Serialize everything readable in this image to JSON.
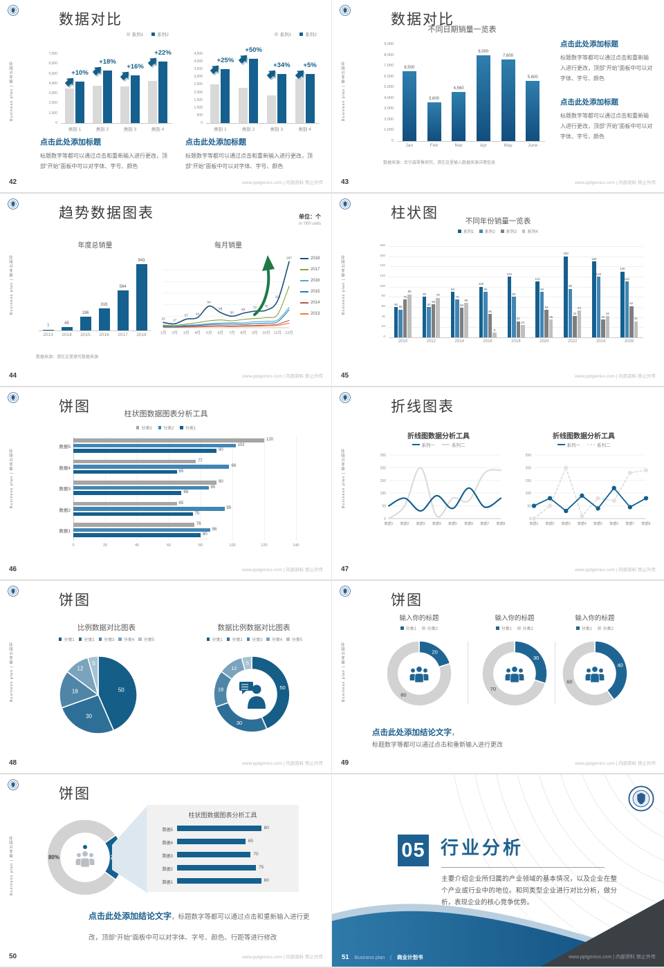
{
  "footer_right": "www.pptgenius.com | 内部资料 禁止外传",
  "sidebar_text": "Business plan | 商业计划书",
  "colors": {
    "accent_blue": "#15608f",
    "mid_blue": "#4186b4",
    "bar_gray": "#d9d9d9",
    "series_gray_dark": "#7f7f7f",
    "series_gray_light": "#bfbfbf",
    "hbar_gray": "#a6a6a6",
    "heading_blue": "#1c5f8d",
    "pie_blues": [
      "#155e87",
      "#2e6f97",
      "#4f86a8",
      "#7aa3bd",
      "#a7c3d4"
    ],
    "donut_blue": "#1f6593",
    "donut_gray": "#d2d2d2",
    "green_arrow": "#1d7a46",
    "divider_dark": "#3b4045",
    "wave_blue_1": "#2f7aa9",
    "wave_blue_2": "#0e4c7c"
  },
  "slides": [
    {
      "page": "42",
      "title": "数据对比",
      "chart_data": [
        {
          "type": "bar",
          "variant": "grouped",
          "categories": [
            "类别 1",
            "类别 2",
            "类别 3",
            "类别 4"
          ],
          "series": [
            {
              "name": "系列1",
              "values": [
                3500,
                3800,
                3700,
                4300
              ]
            },
            {
              "name": "系列2",
              "values": [
                4200,
                5300,
                4800,
                6200
              ]
            }
          ],
          "growth_labels": [
            "+10%",
            "+18%",
            "+16%",
            "+22%"
          ],
          "ylim": [
            0,
            7000
          ],
          "ystep": 1000
        },
        {
          "type": "bar",
          "variant": "grouped",
          "categories": [
            "类别 1",
            "类别 2",
            "类别 3",
            "类别 4"
          ],
          "series": [
            {
              "name": "系列1",
              "values": [
                2500,
                2300,
                1800,
                2900
              ]
            },
            {
              "name": "系列2",
              "values": [
                3500,
                4200,
                3200,
                3200
              ]
            }
          ],
          "growth_labels": [
            "+25%",
            "+50%",
            "+34%",
            "+5%"
          ],
          "ylim": [
            0,
            4500
          ],
          "ystep": 500
        }
      ],
      "blocks": [
        {
          "heading": "点击此处添加标题",
          "body": "标题数字等都可以通过点击和重新输入进行更改，顶部“开始”面板中可以对字体、字号、颜色"
        },
        {
          "heading": "点击此处添加标题",
          "body": "标题数字等都可以通过点击和重新输入进行更改，顶部“开始”面板中可以对字体、字号、颜色"
        }
      ]
    },
    {
      "page": "43",
      "title": "数据对比",
      "chart_data": [
        {
          "type": "bar",
          "title": "不同日期销量一览表",
          "categories": [
            "Jan",
            "Feb",
            "Mar",
            "Apr",
            "May",
            "June"
          ],
          "values": [
            6500,
            3600,
            4560,
            8000,
            7600,
            5600
          ],
          "value_labels": [
            "6,500",
            "3,600",
            "4,560",
            "8,000",
            "7,600",
            "5,600"
          ],
          "ylim": [
            0,
            9000
          ],
          "ystep": 1000
        }
      ],
      "source": "数据来源：尼尔森零售研究，请在这里输入数据来源详情信息",
      "blocks": [
        {
          "heading": "点击此处添加标题",
          "body": "标题数字等都可以通过点击和重新输入进行更改，顶部“开始”面板中可以对字体、字号、颜色"
        },
        {
          "heading": "点击此处添加标题",
          "body": "标题数字等都可以通过点击和重新输入进行更改，顶部“开始”面板中可以对字体、字号、颜色"
        }
      ]
    },
    {
      "page": "44",
      "title": "趋势数据图表",
      "unit": "单位：个",
      "unit_sub": "in '000 units",
      "chart_data": [
        {
          "type": "bar",
          "title": "年度总销量",
          "categories": [
            "2013",
            "2014",
            "2015",
            "2016",
            "2017",
            "2018"
          ],
          "values": [
            7,
            45,
            196,
            316,
            564,
            943
          ]
        },
        {
          "type": "line",
          "title": "每月销量",
          "x": [
            "1月",
            "2月",
            "3月",
            "4月",
            "5月",
            "6月",
            "7月",
            "8月",
            "9月",
            "10月",
            "11月",
            "12月"
          ],
          "series": [
            {
              "name": "2018",
              "color": "#1f4e79",
              "values": [
                23,
                17,
                37,
                44,
                94,
                66,
                50,
                63,
                72,
                76,
                118,
                287
              ]
            },
            {
              "name": "2017",
              "color": "#8aa23a",
              "values": [
                12,
                10,
                16,
                22,
                30,
                34,
                30,
                36,
                40,
                44,
                58,
                180
              ]
            },
            {
              "name": "2016",
              "color": "#4bacc6",
              "values": [
                9,
                7,
                11,
                13,
                18,
                20,
                22,
                21,
                26,
                28,
                34,
                88
              ]
            },
            {
              "name": "2015",
              "color": "#2e75b6",
              "values": [
                6,
                5,
                8,
                10,
                14,
                15,
                16,
                15,
                18,
                20,
                26,
                78
              ]
            },
            {
              "name": "2014",
              "color": "#c0504d",
              "values": [
                4,
                3,
                5,
                6,
                8,
                9,
                8,
                9,
                10,
                12,
                15,
                32
              ]
            },
            {
              "name": "2013",
              "color": "#ed7d31",
              "values": [
                2,
                2,
                3,
                4,
                5,
                6,
                5,
                6,
                7,
                8,
                10,
                20
              ]
            }
          ],
          "ylim": [
            0,
            300
          ]
        }
      ],
      "source": "数据来源：请在这里填写数据来源"
    },
    {
      "page": "45",
      "title": "柱状图",
      "chart_data": [
        {
          "type": "bar",
          "variant": "grouped",
          "title": "不同年份销量一览表",
          "legend": [
            "系列1",
            "系列2",
            "系列3",
            "系列4"
          ],
          "categories": [
            "2010",
            "2012",
            "2014",
            "2016",
            "2018",
            "2020",
            "2022",
            "2024",
            "2026"
          ],
          "series": [
            {
              "name": "系列1",
              "values": [
                60,
                80,
                90,
                100,
                120,
                110,
                160,
                150,
                130
              ]
            },
            {
              "name": "系列2",
              "values": [
                55,
                60,
                75,
                90,
                80,
                90,
                96,
                120,
                110
              ]
            },
            {
              "name": "系列3",
              "values": [
                75,
                65,
                58,
                46,
                32,
                54,
                42,
                35,
                62
              ]
            },
            {
              "name": "系列4",
              "values": [
                85,
                78,
                68,
                9,
                24,
                35,
                53,
                42,
                32
              ]
            }
          ],
          "ylim": [
            0,
            180
          ],
          "ystep": 20
        }
      ]
    },
    {
      "page": "46",
      "title": "饼图",
      "chart_data": [
        {
          "type": "bar",
          "variant": "horizontal-grouped",
          "title": "柱状图数据图表分析工具",
          "legend": [
            "分类3",
            "分类2",
            "分类1"
          ],
          "categories": [
            "数据5",
            "数据4",
            "数据3",
            "数据2",
            "数据1"
          ],
          "series": [
            {
              "name": "分类3",
              "values": [
                120,
                77,
                90,
                65,
                76
              ]
            },
            {
              "name": "分类2",
              "values": [
                102,
                98,
                85,
                95,
                86
              ]
            },
            {
              "name": "分类1",
              "values": [
                90,
                65,
                68,
                75,
                80
              ]
            }
          ],
          "xlim": [
            0,
            140
          ],
          "xstep": 20
        }
      ]
    },
    {
      "page": "47",
      "title": "折线图表",
      "chart_data": [
        {
          "type": "line",
          "title": "折线图数据分析工具",
          "legend": [
            "系列一",
            "系列二"
          ],
          "x": [
            "数据1",
            "数据2",
            "数据3",
            "数据4",
            "数据5",
            "数据6",
            "数据7",
            "数据8"
          ],
          "series": [
            {
              "name": "系列一",
              "values": [
                50,
                80,
                30,
                90,
                40,
                120,
                45,
                80
              ]
            },
            {
              "name": "系列二",
              "values": [
                0,
                50,
                200,
                10,
                80,
                70,
                180,
                190
              ]
            }
          ],
          "ylim": [
            0,
            250
          ],
          "ystep": 50,
          "style": "smooth"
        },
        {
          "type": "line",
          "title": "折线图数据分析工具",
          "legend": [
            "系列一",
            "系列二"
          ],
          "x": [
            "数据1",
            "数据2",
            "数据3",
            "数据4",
            "数据5",
            "数据6",
            "数据7",
            "数据8"
          ],
          "series": [
            {
              "name": "系列一",
              "values": [
                50,
                80,
                30,
                90,
                40,
                120,
                45,
                80
              ]
            },
            {
              "name": "系列二",
              "values": [
                0,
                50,
                200,
                10,
                80,
                70,
                180,
                190
              ]
            }
          ],
          "ylim": [
            0,
            250
          ],
          "ystep": 50,
          "style": "markers"
        }
      ]
    },
    {
      "page": "48",
      "title": "饼图",
      "chart_data": [
        {
          "type": "pie",
          "title": "比例数据对比图表",
          "legend": [
            "分类1",
            "分类2",
            "分类3",
            "分类4",
            "分类5"
          ],
          "values": [
            50,
            30,
            18,
            12,
            5
          ]
        },
        {
          "type": "donut",
          "title": "数据比例数据对比图表",
          "legend": [
            "分类1",
            "分类2",
            "分类3",
            "分类4",
            "分类5"
          ],
          "values": [
            50,
            30,
            18,
            12,
            5
          ]
        }
      ]
    },
    {
      "page": "49",
      "title": "饼图",
      "chart_data": [
        {
          "type": "donut",
          "title": "输入你的标题",
          "legend": [
            "分类1",
            "分类2"
          ],
          "values": [
            20,
            80
          ]
        },
        {
          "type": "donut",
          "title": "输入你的标题",
          "legend": [
            "分类1",
            "分类2"
          ],
          "values": [
            30,
            70
          ]
        },
        {
          "type": "donut",
          "title": "输入你的标题",
          "legend": [
            "分类1",
            "分类2"
          ],
          "values": [
            40,
            60
          ]
        }
      ],
      "conclusion": {
        "heading": "点击此处添加结论文字",
        "sep": "，",
        "body": "标题数字等都可以通过点击和重新输入进行更改"
      }
    },
    {
      "page": "50",
      "title": "饼图",
      "chart_data": [
        {
          "type": "donut",
          "values": [
            20,
            80
          ],
          "labels": [
            "20%",
            "80%"
          ]
        },
        {
          "type": "bar",
          "variant": "horizontal",
          "title": "柱状图数据图表分析工具",
          "categories": [
            "数据5",
            "数据4",
            "数据3",
            "数据2",
            "数据1"
          ],
          "values": [
            80,
            65,
            70,
            75,
            80
          ]
        }
      ],
      "conclusion": {
        "heading": "点击此处添加结论文字",
        "body": "，标题数字等都可以通过点击和重新输入进行更改，顶部“开始”面板中可以对字体、字号、颜色、行距等进行修改"
      }
    },
    {
      "page": "51",
      "number": "05",
      "title": "行业分析",
      "body": "主要介绍企业所归属的产业领域的基本情况，以及企业在整个产业或行业中的地位。和同类型企业进行对比分析，做分析，表现企业的核心竞争优势。",
      "footer_brand": "Business plan",
      "footer_book": "商业计划书"
    }
  ]
}
